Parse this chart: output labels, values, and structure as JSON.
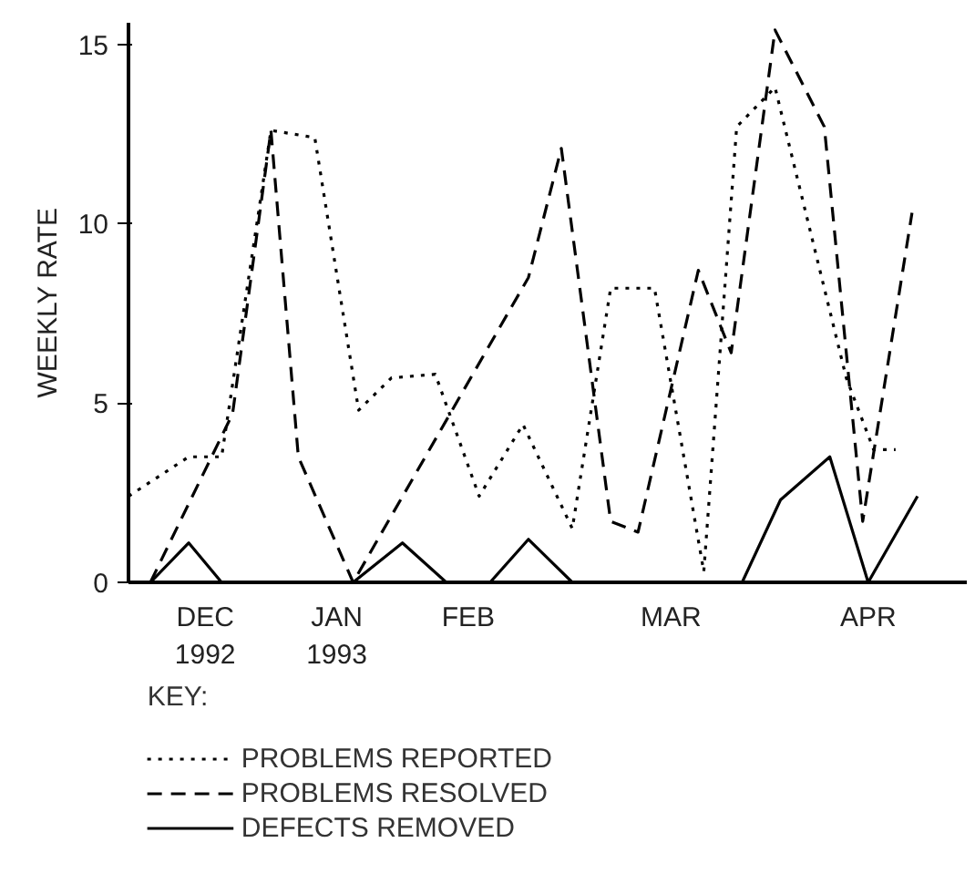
{
  "chart_data": {
    "type": "line",
    "ylabel": "WEEKLY RATE",
    "legend_title": "KEY:",
    "legend": "bottom",
    "grid": false,
    "xlim": [
      "1992-12-01",
      "1993-05-03"
    ],
    "xticks": [
      {
        "value": "1992-12-15",
        "label": "DEC\n1992"
      },
      {
        "value": "1993-01-08",
        "label": "JAN\n1993"
      },
      {
        "value": "1993-02-01",
        "label": "FEB"
      },
      {
        "value": "1993-03-10",
        "label": "MAR"
      },
      {
        "value": "1993-04-15",
        "label": "APR"
      }
    ],
    "ylim": [
      0,
      15.6
    ],
    "yticks": [
      0,
      5,
      10,
      15
    ],
    "series": [
      {
        "name": "PROBLEMS REPORTED",
        "color": "#000000",
        "line_style": "dotted",
        "x": [
          "1992-12-01",
          "1992-12-12",
          "1992-12-18",
          "1992-12-27",
          "1993-01-04",
          "1993-01-12",
          "1993-01-18",
          "1993-01-26",
          "1993-02-03",
          "1993-02-11",
          "1993-02-20",
          "1993-02-27",
          "1993-03-07",
          "1993-03-16",
          "1993-03-22",
          "1993-03-29",
          "1993-04-11",
          "1993-04-16",
          "1993-04-20"
        ],
        "values": [
          2.4,
          3.5,
          3.5,
          12.6,
          12.4,
          4.8,
          5.7,
          5.8,
          2.4,
          4.4,
          1.5,
          8.2,
          8.2,
          0.3,
          12.7,
          13.8,
          5.7,
          3.7,
          3.7
        ]
      },
      {
        "name": "PROBLEMS RESOLVED",
        "color": "#000000",
        "line_style": "dashed",
        "x": [
          "1992-12-05",
          "1992-12-20",
          "1992-12-27",
          "1993-01-01",
          "1993-01-11",
          "1993-02-12",
          "1993-02-18",
          "1993-02-27",
          "1993-03-04",
          "1993-03-15",
          "1993-03-21",
          "1993-03-29",
          "1993-04-07",
          "1993-04-14",
          "1993-04-23"
        ],
        "values": [
          0,
          4.7,
          12.6,
          3.5,
          0,
          8.5,
          12.1,
          1.7,
          1.4,
          8.7,
          6.4,
          15.4,
          12.7,
          1.7,
          10.3
        ]
      },
      {
        "name": "DEFECTS REMOVED",
        "color": "#000000",
        "line_style": "solid",
        "x": [
          "1992-12-01",
          "1992-12-05",
          "1992-12-12",
          "1992-12-18",
          "1993-01-11",
          "1993-01-20",
          "1993-01-28",
          "1993-02-05",
          "1993-02-12",
          "1993-02-20",
          "1993-03-23",
          "1993-03-30",
          "1993-04-08",
          "1993-04-15",
          "1993-04-24"
        ],
        "values": [
          0,
          0,
          1.1,
          0,
          0,
          1.1,
          0,
          0,
          1.2,
          0,
          0,
          2.3,
          3.5,
          0,
          2.4
        ]
      }
    ]
  }
}
